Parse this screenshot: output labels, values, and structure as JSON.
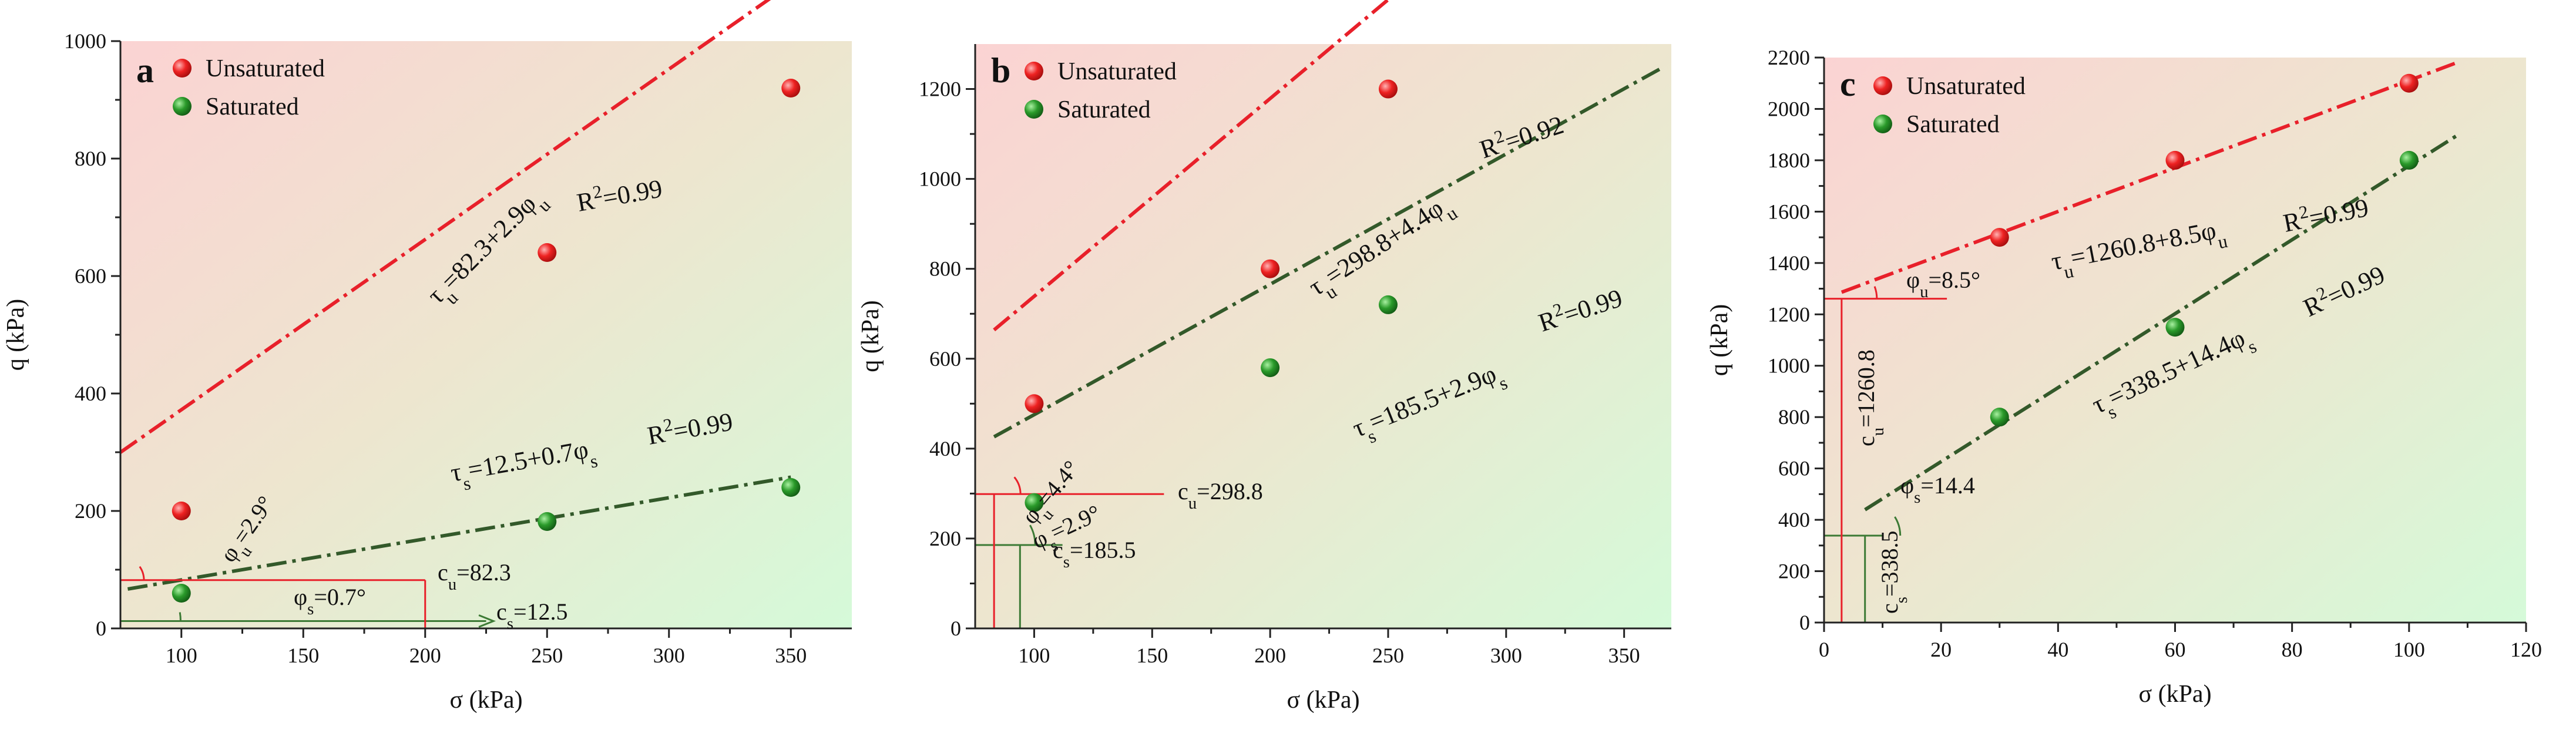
{
  "chart_data": [
    {
      "type": "scatter",
      "panel": "a",
      "xlabel": "σ (kPa)",
      "ylabel": "q (kPa)",
      "xlim": [
        75,
        375
      ],
      "ylim": [
        0,
        1000
      ],
      "xticks": [
        100,
        150,
        200,
        250,
        300,
        350
      ],
      "yticks": [
        0,
        200,
        400,
        600,
        800,
        1000
      ],
      "legend": [
        "Unsaturated",
        "Saturated"
      ],
      "series": [
        {
          "name": "Unsaturated",
          "color": "#e8202a",
          "points": [
            [
              100,
              200
            ],
            [
              250,
              640
            ],
            [
              350,
              920
            ]
          ]
        },
        {
          "name": "Saturated",
          "color": "#1e8a23",
          "points": [
            [
              100,
              60
            ],
            [
              250,
              182
            ],
            [
              350,
              240
            ]
          ]
        }
      ],
      "fits": [
        {
          "name": "Unsaturated",
          "color": "#e8202a",
          "intercept": 82.3,
          "slope": 2.9,
          "x_range": [
            75,
            345
          ]
        },
        {
          "name": "Saturated",
          "color": "#33592a",
          "intercept": 12.5,
          "slope": 0.7,
          "x_range": [
            78,
            350
          ]
        }
      ],
      "annotations": {
        "eq_u": "τu=82.3+2.9φu",
        "r2_u": "R²=0.99",
        "eq_s": "τs=12.5+0.7φs",
        "r2_s": "R²=0.99",
        "phi_u": "φu=2.9°",
        "phi_s": "φs=0.7°",
        "c_u": "cu=82.3",
        "c_s": "cs=12.5"
      }
    },
    {
      "type": "scatter",
      "panel": "b",
      "xlabel": "σ (kPa)",
      "ylabel": "q (kPa)",
      "xlim": [
        75,
        370
      ],
      "ylim": [
        0,
        1300
      ],
      "xticks": [
        100,
        150,
        200,
        250,
        300,
        350
      ],
      "yticks": [
        0,
        200,
        400,
        600,
        800,
        1000,
        1200
      ],
      "legend": [
        "Unsaturated",
        "Saturated"
      ],
      "series": [
        {
          "name": "Unsaturated",
          "color": "#e8202a",
          "points": [
            [
              100,
              500
            ],
            [
              200,
              800
            ],
            [
              250,
              1200
            ]
          ]
        },
        {
          "name": "Saturated",
          "color": "#1e8a23",
          "points": [
            [
              100,
              280
            ],
            [
              200,
              580
            ],
            [
              250,
              720
            ]
          ]
        }
      ],
      "fits": [
        {
          "name": "Unsaturated",
          "color": "#e8202a",
          "intercept": 298.8,
          "slope": 4.4,
          "x_range": [
            83,
            280
          ]
        },
        {
          "name": "Saturated",
          "color": "#33592a",
          "intercept": 185.5,
          "slope": 2.9,
          "x_range": [
            83,
            365
          ]
        }
      ],
      "annotations": {
        "eq_u": "τu=298.8+4.4φu",
        "r2_u": "R²=0.92",
        "eq_s": "τs=185.5+2.9φs",
        "r2_s": "R²=0.99",
        "phi_u": "φu=4.4°",
        "phi_s": "φs=2.9°",
        "c_u": "cu=298.8",
        "c_s": "cs=185.5"
      }
    },
    {
      "type": "scatter",
      "panel": "c",
      "xlabel": "σ (kPa)",
      "ylabel": "q (kPa)",
      "xlim": [
        0,
        120
      ],
      "ylim": [
        0,
        2200
      ],
      "xticks": [
        0,
        20,
        40,
        60,
        80,
        100,
        120
      ],
      "yticks": [
        0,
        200,
        400,
        600,
        800,
        1000,
        1200,
        1400,
        1600,
        1800,
        2000,
        2200
      ],
      "legend": [
        "Unsaturated",
        "Saturated"
      ],
      "series": [
        {
          "name": "Unsaturated",
          "color": "#e8202a",
          "points": [
            [
              30,
              1500
            ],
            [
              60,
              1800
            ],
            [
              100,
              2100
            ]
          ]
        },
        {
          "name": "Saturated",
          "color": "#1e8a23",
          "points": [
            [
              30,
              800
            ],
            [
              60,
              1150
            ],
            [
              100,
              1800
            ]
          ]
        }
      ],
      "fits": [
        {
          "name": "Unsaturated",
          "color": "#e8202a",
          "intercept": 1260.8,
          "slope": 8.5,
          "x_range": [
            3,
            108
          ]
        },
        {
          "name": "Saturated",
          "color": "#33592a",
          "intercept": 338.5,
          "slope": 14.4,
          "x_range": [
            7,
            108
          ]
        }
      ],
      "annotations": {
        "eq_u": "τu=1260.8+8.5φu",
        "r2_u": "R²=0.99",
        "eq_s": "τs=338.5+14.4φs",
        "r2_s": "R²=0.99",
        "phi_u": "φu=8.5°",
        "phi_s": "φs=14.4",
        "c_u": "cu=1260.8",
        "c_s": "cs=338.5"
      }
    }
  ]
}
